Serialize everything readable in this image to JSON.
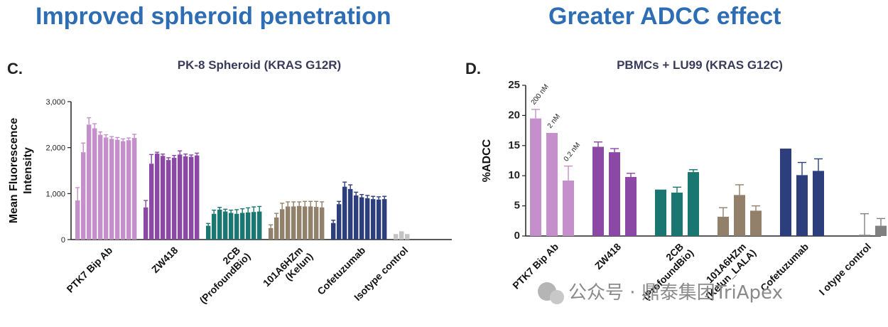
{
  "headings": {
    "left": "Improved spheroid penetration",
    "right": "Greater ADCC effect"
  },
  "watermark": "公众号 · 鼎泰集团TriApex",
  "chart_data": [
    {
      "type": "bar",
      "panel": "C.",
      "title": "PK-8 Spheroid (KRAS G12R)",
      "ylabel": "Mean Fluorescence Intensity",
      "ylim": [
        0,
        3000
      ],
      "yticks": [
        "0",
        "1,000",
        "2,000",
        "3,000"
      ],
      "groups": [
        {
          "name": "PTK7 Bip Ab",
          "color": "#C58FCB",
          "values": [
            850,
            1900,
            2500,
            2420,
            2280,
            2220,
            2190,
            2170,
            2140,
            2160,
            2210
          ],
          "errors": [
            280,
            200,
            150,
            100,
            60,
            60,
            50,
            50,
            50,
            50,
            80
          ]
        },
        {
          "name": "ZW418",
          "color": "#8B48A5",
          "values": [
            700,
            1650,
            1870,
            1820,
            1730,
            1780,
            1850,
            1810,
            1800,
            1830
          ],
          "errors": [
            150,
            200,
            30,
            40,
            50,
            50,
            80,
            50,
            40,
            50
          ]
        },
        {
          "name": "2CB\n(ProfoundBio)",
          "color": "#1A7670",
          "values": [
            300,
            560,
            650,
            610,
            580,
            560,
            580,
            590,
            600,
            610
          ],
          "errors": [
            50,
            80,
            50,
            50,
            60,
            90,
            90,
            100,
            110,
            110
          ]
        },
        {
          "name": "101A6HZm\n(Kelun)",
          "color": "#93806A",
          "values": [
            250,
            480,
            660,
            720,
            720,
            730,
            720,
            720,
            710,
            700
          ],
          "errors": [
            70,
            90,
            130,
            100,
            100,
            90,
            110,
            110,
            120,
            120
          ]
        },
        {
          "name": "Cofetuzumab",
          "color": "#2C3E7B",
          "values": [
            360,
            770,
            1150,
            1100,
            960,
            920,
            900,
            880,
            870,
            880
          ],
          "errors": [
            60,
            60,
            100,
            90,
            70,
            60,
            60,
            60,
            60,
            60
          ]
        },
        {
          "name": "Isotype control",
          "color": "#C3C3C3",
          "values": [
            120,
            180,
            120
          ],
          "errors": [
            0,
            0,
            0
          ]
        }
      ]
    },
    {
      "type": "bar",
      "panel": "D.",
      "title": "PBMCs + LU99 (KRAS G12C)",
      "ylabel": "%ADCC",
      "ylim": [
        0,
        25
      ],
      "yticks": [
        "0",
        "5",
        "10",
        "15",
        "20",
        "25"
      ],
      "annotations": [
        "200 nM",
        "2 nM",
        "0.2 nM"
      ],
      "groups": [
        {
          "name": "PTK7 Bip Ab",
          "color": "#C58FCB",
          "values": [
            19.5,
            17.1,
            9.2
          ],
          "errors": [
            1.5,
            0,
            2.4
          ]
        },
        {
          "name": "ZW418",
          "color": "#8B48A5",
          "values": [
            14.8,
            13.9,
            9.8
          ],
          "errors": [
            0.8,
            0.6,
            0.6
          ]
        },
        {
          "name": "2CB\n(ProfoundBio)",
          "color": "#1A7670",
          "values": [
            7.7,
            7.2,
            10.6
          ],
          "errors": [
            0,
            0.9,
            0.4
          ]
        },
        {
          "name": "101A6HZm\n(Kelun_LALA)",
          "color": "#93806A",
          "values": [
            3.2,
            6.8,
            4.2
          ],
          "errors": [
            1.5,
            1.7,
            0.8
          ]
        },
        {
          "name": "Cofetuzumab",
          "color": "#2C3E7B",
          "values": [
            14.5,
            10.1,
            10.8
          ],
          "errors": [
            0,
            2.1,
            2.0
          ]
        },
        {
          "name": "I otype control",
          "color": "#808080",
          "values": [
            0,
            0.2,
            1.7
          ],
          "errors": [
            0,
            3.5,
            1.2
          ]
        }
      ]
    }
  ]
}
